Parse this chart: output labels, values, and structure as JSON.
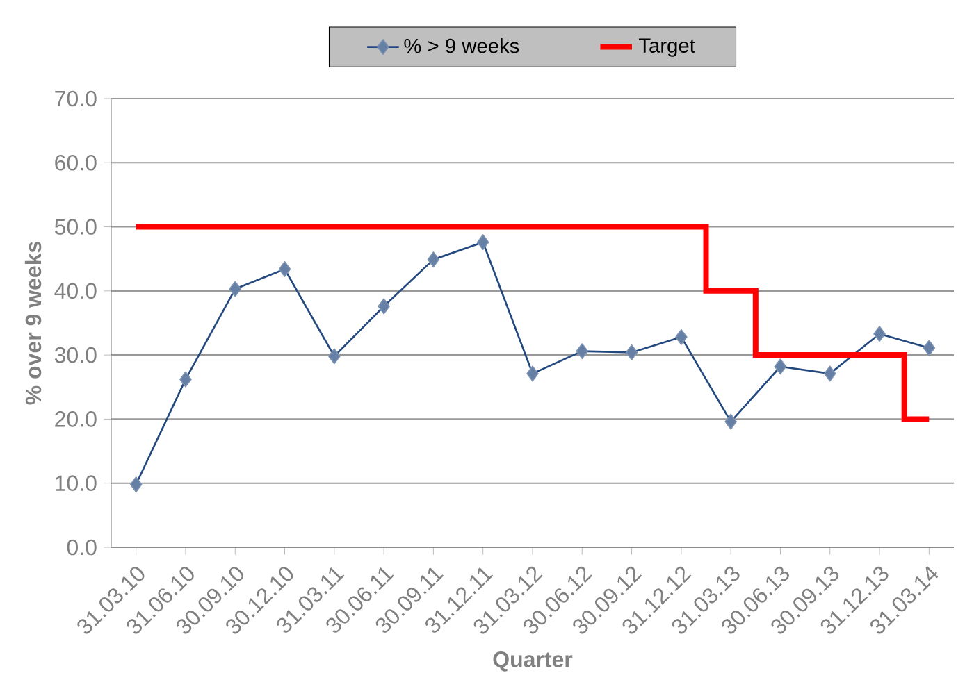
{
  "chart_data": {
    "type": "line",
    "xlabel": "Quarter",
    "ylabel": "% over 9 weeks",
    "categories": [
      "31.03.10",
      "31.06.10",
      "30.09.10",
      "30.12.10",
      "31.03.11",
      "30.06.11",
      "30.09.11",
      "31.12.11",
      "31.03.12",
      "30.06.12",
      "30.09.12",
      "31.12.12",
      "31.03.13",
      "30.06.13",
      "30.09.13",
      "31.12.13",
      "31.03.14"
    ],
    "series": [
      {
        "name": "% > 9 weeks",
        "color": "#24497f",
        "marker": "diamond",
        "values": [
          9.8,
          26.2,
          40.3,
          43.4,
          29.8,
          37.6,
          44.9,
          47.6,
          27.1,
          30.6,
          30.4,
          32.8,
          19.6,
          28.2,
          27.1,
          33.3,
          31.1
        ]
      },
      {
        "name": "Target",
        "type": "step",
        "color": "#ff0000",
        "marker": "none",
        "values": [
          50,
          50,
          50,
          50,
          50,
          50,
          50,
          50,
          50,
          50,
          50,
          50,
          40,
          30,
          30,
          30,
          20
        ]
      }
    ],
    "ylim": [
      0,
      70
    ],
    "yticks": [
      {
        "value": 0,
        "label": "0.0"
      },
      {
        "value": 10,
        "label": "10.0"
      },
      {
        "value": 20,
        "label": "20.0"
      },
      {
        "value": 30,
        "label": "30.0"
      },
      {
        "value": 40,
        "label": "40.0"
      },
      {
        "value": 50,
        "label": "50.0"
      },
      {
        "value": 60,
        "label": "60.0"
      },
      {
        "value": 70,
        "label": "70.0"
      }
    ],
    "grid": "y",
    "legend": "top"
  }
}
